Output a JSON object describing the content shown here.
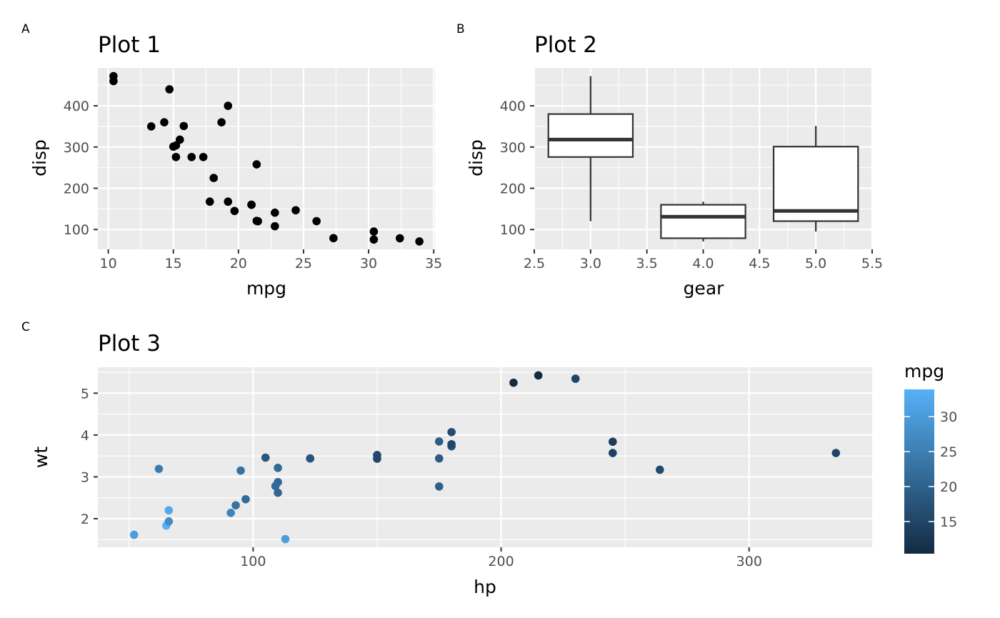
{
  "chart_data": [
    {
      "tag": "A",
      "title": "Plot 1",
      "type": "scatter",
      "xlabel": "mpg",
      "ylabel": "disp",
      "xlim": [
        9.2,
        35.1
      ],
      "ylim": [
        51.9,
        492.0
      ],
      "x_ticks": [
        10,
        15,
        20,
        25,
        30,
        35
      ],
      "y_ticks": [
        100,
        200,
        300,
        400
      ],
      "grid": true,
      "point_color": "#000000",
      "points": [
        [
          21.0,
          160
        ],
        [
          21.0,
          160
        ],
        [
          22.8,
          108
        ],
        [
          21.4,
          258
        ],
        [
          18.7,
          360
        ],
        [
          18.1,
          225
        ],
        [
          14.3,
          360
        ],
        [
          24.4,
          146.7
        ],
        [
          22.8,
          140.8
        ],
        [
          19.2,
          167.6
        ],
        [
          17.8,
          167.6
        ],
        [
          16.4,
          275.8
        ],
        [
          17.3,
          275.8
        ],
        [
          15.2,
          275.8
        ],
        [
          10.4,
          472
        ],
        [
          10.4,
          460
        ],
        [
          14.7,
          440
        ],
        [
          32.4,
          78.7
        ],
        [
          30.4,
          75.7
        ],
        [
          33.9,
          71.1
        ],
        [
          21.5,
          120.1
        ],
        [
          15.5,
          318
        ],
        [
          15.2,
          304
        ],
        [
          13.3,
          350
        ],
        [
          19.2,
          400
        ],
        [
          27.3,
          79
        ],
        [
          26.0,
          120.3
        ],
        [
          30.4,
          95.1
        ],
        [
          15.8,
          351
        ],
        [
          19.7,
          145
        ],
        [
          15.0,
          301
        ],
        [
          21.4,
          121
        ]
      ]
    },
    {
      "tag": "B",
      "title": "Plot 2",
      "type": "box",
      "xlabel": "gear",
      "ylabel": "disp",
      "xlim": [
        2.5,
        5.5
      ],
      "ylim": [
        51.9,
        492.0
      ],
      "x_ticks": [
        "2.5",
        "3.0",
        "3.5",
        "4.0",
        "4.5",
        "5.0",
        "5.5"
      ],
      "y_ticks": [
        100,
        200,
        300,
        400
      ],
      "grid": true,
      "boxes": [
        {
          "x": 3,
          "whisker_low": 120.1,
          "q1": 275.8,
          "median": 318,
          "q3": 380,
          "whisker_high": 472
        },
        {
          "x": 4,
          "whisker_low": 71.1,
          "q1": 78.85,
          "median": 130.9,
          "q3": 160,
          "whisker_high": 167.6
        },
        {
          "x": 5,
          "whisker_low": 95.1,
          "q1": 120.3,
          "median": 145,
          "q3": 301,
          "whisker_high": 351
        }
      ]
    },
    {
      "tag": "C",
      "title": "Plot 3",
      "type": "scatter",
      "xlabel": "hp",
      "ylabel": "wt",
      "xlim": [
        37.4,
        349.6
      ],
      "ylim": [
        1.317,
        5.62
      ],
      "x_ticks": [
        100,
        200,
        300
      ],
      "y_ticks": [
        2,
        3,
        4,
        5
      ],
      "grid": true,
      "color_legend": {
        "title": "mpg",
        "ticks": [
          15,
          20,
          25,
          30
        ],
        "range": [
          10.4,
          33.9
        ],
        "low_color": "#132B43",
        "high_color": "#56B1F7"
      },
      "points": [
        [
          110,
          2.62,
          21.0
        ],
        [
          110,
          2.875,
          21.0
        ],
        [
          93,
          2.32,
          22.8
        ],
        [
          110,
          3.215,
          21.4
        ],
        [
          175,
          3.44,
          18.7
        ],
        [
          105,
          3.46,
          18.1
        ],
        [
          245,
          3.57,
          14.3
        ],
        [
          62,
          3.19,
          24.4
        ],
        [
          95,
          3.15,
          22.8
        ],
        [
          123,
          3.44,
          19.2
        ],
        [
          123,
          3.44,
          17.8
        ],
        [
          180,
          4.07,
          16.4
        ],
        [
          180,
          3.73,
          17.3
        ],
        [
          180,
          3.78,
          15.2
        ],
        [
          205,
          5.25,
          10.4
        ],
        [
          215,
          5.424,
          10.4
        ],
        [
          230,
          5.345,
          14.7
        ],
        [
          66,
          2.2,
          32.4
        ],
        [
          52,
          1.615,
          30.4
        ],
        [
          65,
          1.835,
          33.9
        ],
        [
          97,
          2.465,
          21.5
        ],
        [
          150,
          3.52,
          15.5
        ],
        [
          150,
          3.435,
          15.2
        ],
        [
          245,
          3.84,
          13.3
        ],
        [
          175,
          3.845,
          19.2
        ],
        [
          66,
          1.935,
          27.3
        ],
        [
          91,
          2.14,
          26.0
        ],
        [
          113,
          1.513,
          30.4
        ],
        [
          264,
          3.17,
          15.8
        ],
        [
          175,
          2.77,
          19.7
        ],
        [
          335,
          3.57,
          15.0
        ],
        [
          109,
          2.78,
          21.4
        ]
      ]
    }
  ]
}
